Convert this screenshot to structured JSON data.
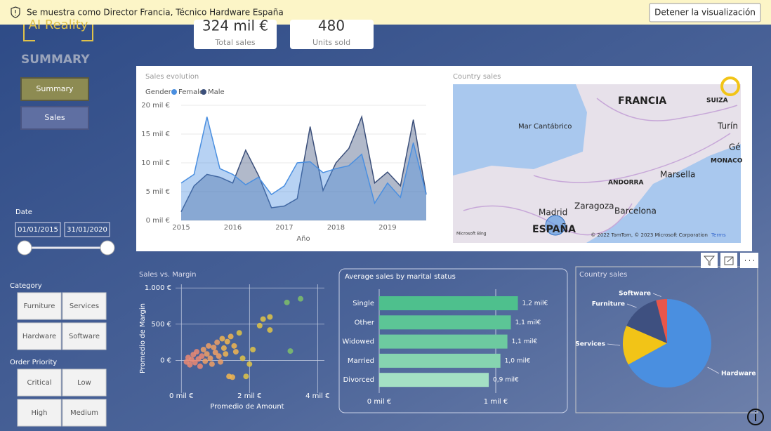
{
  "banner": {
    "message": "Se muestra como Director Francia, Técnico Hardware España",
    "button": "Detener la visualización"
  },
  "logo": "AI Reality",
  "kpis": [
    {
      "value": "324 mil €",
      "label": "Total sales"
    },
    {
      "value": "480",
      "label": "Units sold"
    }
  ],
  "page_title": "SUMMARY",
  "nav": [
    "Summary",
    "Sales"
  ],
  "date_slicer": {
    "title": "Date",
    "start": "01/01/2015",
    "end": "31/01/2020"
  },
  "category_slicer": {
    "title": "Category",
    "items": [
      "Furniture",
      "Services",
      "Hardware",
      "Software"
    ]
  },
  "priority_slicer": {
    "title": "Order Priority",
    "items": [
      "Critical",
      "Low",
      "High",
      "Medium"
    ]
  },
  "map": {
    "title": "Country sales",
    "labels": [
      "FRANCIA",
      "SUIZA",
      "Mar Cantábrico",
      "Turín",
      "MONACO",
      "Marsella",
      "ANDORRA",
      "Zaragoza",
      "Barcelona",
      "Madrid",
      "ESPAÑA",
      "Gé"
    ],
    "attribution": "© 2022 TomTom, © 2023 Microsoft Corporation",
    "terms": "Terms",
    "provider": "Microsoft Bing"
  },
  "chart_data": [
    {
      "type": "area",
      "title": "Sales evolution",
      "x_label": "Año",
      "legend_title": "Gender",
      "x": [
        2015,
        2015.25,
        2015.5,
        2015.75,
        2016,
        2016.25,
        2016.5,
        2016.75,
        2017,
        2017.25,
        2017.5,
        2017.75,
        2018,
        2018.25,
        2018.5,
        2018.75,
        2019,
        2019.25,
        2019.5,
        2019.75
      ],
      "series": [
        {
          "name": "Female",
          "color": "#4a8fe0",
          "values": [
            6.5,
            8,
            18,
            9,
            8,
            6.2,
            7.5,
            4.5,
            6,
            10,
            10.2,
            8.3,
            9,
            9.5,
            11.5,
            3,
            6.5,
            4,
            13.5,
            4.5
          ]
        },
        {
          "name": "Male",
          "color": "#3b4f7a",
          "values": [
            1.5,
            6,
            8,
            7.5,
            6.5,
            12.2,
            7.8,
            2.2,
            2.5,
            3.8,
            16.3,
            5.2,
            10,
            12.5,
            18,
            6.5,
            8.4,
            6,
            17.5,
            4.5
          ]
        }
      ],
      "xlim": [
        2015,
        2019.75
      ],
      "xticks": [
        2015,
        2016,
        2017,
        2018,
        2019
      ],
      "ylim": [
        0,
        20
      ],
      "yticks": [
        {
          "value": 0,
          "label": "0 mil €"
        },
        {
          "value": 5,
          "label": "5 mil €"
        },
        {
          "value": 10,
          "label": "10 mil €"
        },
        {
          "value": 15,
          "label": "15 mil €"
        },
        {
          "value": 20,
          "label": "20 mil €"
        }
      ],
      "grid": true
    },
    {
      "type": "scatter",
      "title": "Sales vs. Margin",
      "x_label": "Promedio de Amount",
      "y_label": "Promedio de Margin",
      "x": [
        0.15,
        0.2,
        0.25,
        0.3,
        0.35,
        0.4,
        0.45,
        0.5,
        0.55,
        0.6,
        0.65,
        0.7,
        0.75,
        0.8,
        0.85,
        0.9,
        0.95,
        1.0,
        1.05,
        1.1,
        1.15,
        1.2,
        1.25,
        1.3,
        1.35,
        1.4,
        1.45,
        1.5,
        1.55,
        1.6,
        1.7,
        1.8,
        1.9,
        2.0,
        2.1,
        2.3,
        2.4,
        2.6,
        2.6,
        3.1,
        3.2,
        3.5
      ],
      "values": [
        -20,
        40,
        -60,
        10,
        80,
        -30,
        120,
        20,
        -80,
        60,
        150,
        -10,
        90,
        200,
        30,
        -50,
        180,
        110,
        250,
        60,
        -20,
        300,
        170,
        90,
        260,
        -220,
        330,
        -230,
        200,
        120,
        380,
        30,
        -220,
        -50,
        150,
        480,
        570,
        420,
        600,
        800,
        130,
        850
      ],
      "colors": [
        "#ec8a73",
        "#ec8a73",
        "#ec8a73",
        "#ec8a73",
        "#ec8a73",
        "#ec8a73",
        "#ec8a73",
        "#ec8a73",
        "#ec8a73",
        "#ec8a73",
        "#f0a065",
        "#f0a065",
        "#f0a065",
        "#f0a065",
        "#f0a065",
        "#f0a065",
        "#f0a065",
        "#f0a065",
        "#f0a065",
        "#f0a065",
        "#f0a065",
        "#f2b650",
        "#f2b650",
        "#f2b650",
        "#f2b650",
        "#f2b650",
        "#f2b650",
        "#f2b650",
        "#f2b650",
        "#f2b650",
        "#e0c446",
        "#e0c446",
        "#e0c446",
        "#e0c446",
        "#e0c446",
        "#e0c446",
        "#e0c446",
        "#e0c446",
        "#e0c446",
        "#7fbf6a",
        "#7fbf6a",
        "#7fbf6a"
      ],
      "xlim": [
        -0.17,
        4.2
      ],
      "xticks": [
        {
          "value": 0,
          "label": "0 mil €"
        },
        {
          "value": 2,
          "label": "2 mil €"
        },
        {
          "value": 4,
          "label": "4 mil €"
        }
      ],
      "ylim": [
        -450,
        1050
      ],
      "yticks": [
        {
          "value": 0,
          "label": "0 €"
        },
        {
          "value": 500,
          "label": "500 €"
        },
        {
          "value": 1000,
          "label": "1.000 €"
        }
      ],
      "grid": true
    },
    {
      "type": "hbar",
      "title": "Average sales by marital status",
      "categories": [
        "Single",
        "Other",
        "Widowed",
        "Married",
        "Divorced"
      ],
      "values": [
        1.19,
        1.13,
        1.1,
        1.04,
        0.94
      ],
      "value_labels": [
        "1,2 mil€",
        "1,1 mil€",
        "1,1 mil€",
        "1,0 mil€",
        "0,9 mil€"
      ],
      "colors": [
        "#4ec08d",
        "#5cc596",
        "#6dcaa0",
        "#86d4b0",
        "#a4e0c4"
      ],
      "xlim": [
        0,
        1.5
      ],
      "xticks": [
        {
          "value": 0,
          "label": "0 mil €"
        },
        {
          "value": 1,
          "label": "1 mil €"
        }
      ],
      "grid": true
    },
    {
      "type": "pie",
      "title": "Country sales",
      "categories": [
        "Hardware",
        "Services",
        "Furniture",
        "Software"
      ],
      "values": [
        67,
        14.5,
        14.5,
        4
      ],
      "colors": [
        "#4a8fe0",
        "#f2c417",
        "#3e5080",
        "#e8564a"
      ]
    }
  ]
}
